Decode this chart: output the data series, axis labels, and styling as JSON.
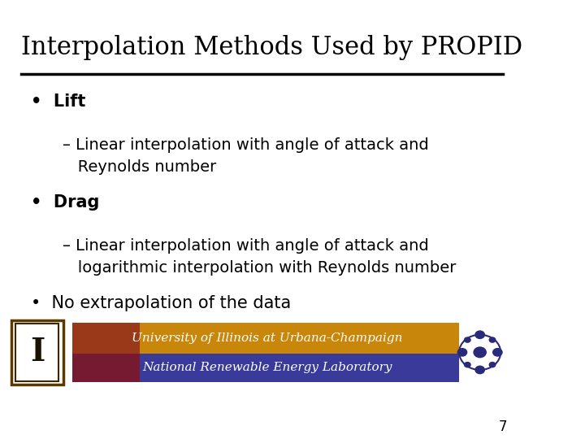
{
  "title": "Interpolation Methods Used by PROPID",
  "title_fontsize": 22,
  "title_color": "#000000",
  "bg_color": "#ffffff",
  "underline_color": "#000000",
  "bullet_items": [
    {
      "level": 0,
      "text": "Lift",
      "bold": true
    },
    {
      "level": 1,
      "text": "– Linear interpolation with angle of attack and\n   Reynolds number",
      "bold": false
    },
    {
      "level": 0,
      "text": "Drag",
      "bold": true
    },
    {
      "level": 1,
      "text": "– Linear interpolation with angle of attack and\n   logarithmic interpolation with Reynolds number",
      "bold": false
    },
    {
      "level": 0,
      "text": "No extrapolation of the data",
      "bold": false
    }
  ],
  "bullet_fontsize": 15,
  "sub_fontsize": 14,
  "footer_bar1_color": "#c8860a",
  "footer_bar1_left_color": "#8B2020",
  "footer_bar2_color": "#3a3a9a",
  "footer_text1": "University of Illinois at Urbana-Champaign",
  "footer_text2": "National Renewable Energy Laboratory",
  "footer_text_color": "#ffffff",
  "footer_fontsize": 11,
  "page_number": "7",
  "nrel_dot_color": "#2a2a7a"
}
